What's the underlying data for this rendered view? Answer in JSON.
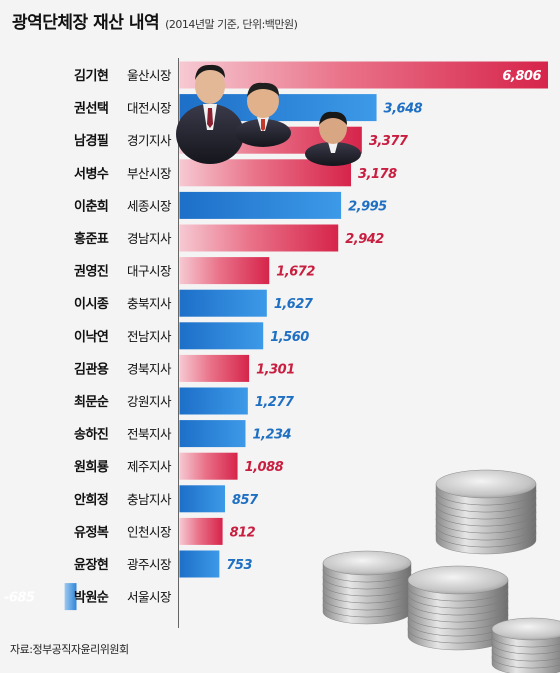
{
  "header": {
    "title": "광역단체장 재산 내역",
    "subtitle": "(2014년말 기준, 단위:백만원)"
  },
  "source": "자료:정부공직자윤리위원회",
  "colors": {
    "red_bar": "#d93355",
    "blue_bar": "#2e8ad8",
    "red_text": "#c81e40",
    "blue_text": "#1f6fc2"
  },
  "chart_data": {
    "type": "bar",
    "orientation": "horizontal",
    "title": "광역단체장 재산 내역",
    "subtitle": "(2014년말 기준, 단위:백만원)",
    "unit": "백만원",
    "rows": [
      {
        "name": "김기현",
        "role": "울산시장",
        "value": 6806,
        "label": "6,806",
        "color": "red"
      },
      {
        "name": "권선택",
        "role": "대전시장",
        "value": 3648,
        "label": "3,648",
        "color": "blue"
      },
      {
        "name": "남경필",
        "role": "경기지사",
        "value": 3377,
        "label": "3,377",
        "color": "red"
      },
      {
        "name": "서병수",
        "role": "부산시장",
        "value": 3178,
        "label": "3,178",
        "color": "red"
      },
      {
        "name": "이춘희",
        "role": "세종시장",
        "value": 2995,
        "label": "2,995",
        "color": "blue"
      },
      {
        "name": "홍준표",
        "role": "경남지사",
        "value": 2942,
        "label": "2,942",
        "color": "red"
      },
      {
        "name": "권영진",
        "role": "대구시장",
        "value": 1672,
        "label": "1,672",
        "color": "red"
      },
      {
        "name": "이시종",
        "role": "충북지사",
        "value": 1627,
        "label": "1,627",
        "color": "blue"
      },
      {
        "name": "이낙연",
        "role": "전남지사",
        "value": 1560,
        "label": "1,560",
        "color": "blue"
      },
      {
        "name": "김관용",
        "role": "경북지사",
        "value": 1301,
        "label": "1,301",
        "color": "red"
      },
      {
        "name": "최문순",
        "role": "강원지사",
        "value": 1277,
        "label": "1,277",
        "color": "blue"
      },
      {
        "name": "송하진",
        "role": "전북지사",
        "value": 1234,
        "label": "1,234",
        "color": "blue"
      },
      {
        "name": "원희룡",
        "role": "제주지사",
        "value": 1088,
        "label": "1,088",
        "color": "red"
      },
      {
        "name": "안희정",
        "role": "충남지사",
        "value": 857,
        "label": "857",
        "color": "blue"
      },
      {
        "name": "유정복",
        "role": "인천시장",
        "value": 812,
        "label": "812",
        "color": "red"
      },
      {
        "name": "윤장현",
        "role": "광주시장",
        "value": 753,
        "label": "753",
        "color": "blue"
      },
      {
        "name": "박원순",
        "role": "서울시장",
        "value": -685,
        "label": "-685",
        "color": "blue"
      }
    ]
  }
}
